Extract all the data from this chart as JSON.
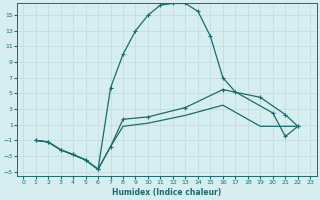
{
  "xlabel": "Humidex (Indice chaleur)",
  "bg_color": "#d7eef1",
  "grid_color": "#c2dde0",
  "line_color": "#1a6b6b",
  "xlim": [
    -0.5,
    23.5
  ],
  "ylim": [
    -5.5,
    16.5
  ],
  "yticks": [
    -5,
    -3,
    -1,
    1,
    3,
    5,
    7,
    9,
    11,
    13,
    15
  ],
  "xticks": [
    0,
    1,
    2,
    3,
    4,
    5,
    6,
    7,
    8,
    9,
    10,
    11,
    12,
    13,
    14,
    15,
    16,
    17,
    18,
    19,
    20,
    21,
    22,
    23
  ],
  "line1_x": [
    1,
    2,
    3,
    4,
    5,
    6,
    7,
    8,
    9,
    10,
    11,
    12,
    13,
    14,
    15,
    16,
    17,
    20,
    21,
    22
  ],
  "line1_y": [
    -1,
    -1.2,
    -2.2,
    -2.8,
    -3.5,
    -4.7,
    5.7,
    10.0,
    13.0,
    15.0,
    16.3,
    16.5,
    16.5,
    15.5,
    12.3,
    7.0,
    5.2,
    2.5,
    -0.5,
    0.8
  ],
  "line2_x": [
    1,
    2,
    3,
    4,
    5,
    6,
    7,
    8,
    10,
    13,
    16,
    19,
    21,
    22
  ],
  "line2_y": [
    -1,
    -1.2,
    -2.2,
    -2.8,
    -3.5,
    -4.7,
    -1.8,
    1.7,
    2.0,
    3.2,
    5.5,
    4.5,
    2.3,
    0.8
  ],
  "line3_x": [
    1,
    2,
    3,
    5,
    6,
    7,
    8,
    10,
    13,
    16,
    19,
    22
  ],
  "line3_y": [
    -1,
    -1.2,
    -2.2,
    -3.5,
    -4.7,
    -1.8,
    0.8,
    1.2,
    2.2,
    3.5,
    0.8,
    0.8
  ]
}
